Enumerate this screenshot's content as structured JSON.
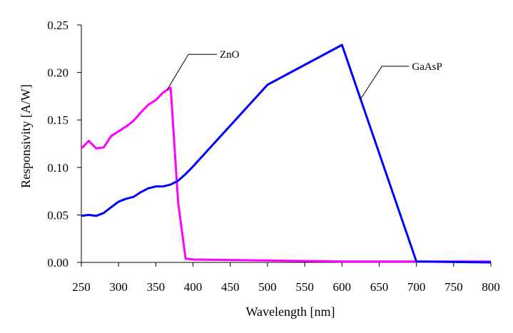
{
  "chart_data": {
    "type": "line",
    "title": "",
    "xlabel": "Wavelength  [nm]",
    "ylabel": "Responsivity [A/W]",
    "xlim": [
      250,
      800
    ],
    "ylim": [
      0,
      0.25
    ],
    "x_ticks": [
      250,
      300,
      350,
      400,
      450,
      500,
      550,
      600,
      650,
      700,
      750,
      800
    ],
    "y_ticks": [
      "0.00",
      "0.05",
      "0.10",
      "0.15",
      "0.20",
      "0.25"
    ],
    "grid": false,
    "legend": "none",
    "series": [
      {
        "name": "ZnO",
        "color": "#ff00ff",
        "points": [
          [
            250,
            0.12
          ],
          [
            260,
            0.128
          ],
          [
            270,
            0.12
          ],
          [
            280,
            0.121
          ],
          [
            290,
            0.133
          ],
          [
            300,
            0.138
          ],
          [
            310,
            0.143
          ],
          [
            320,
            0.149
          ],
          [
            330,
            0.158
          ],
          [
            340,
            0.166
          ],
          [
            350,
            0.171
          ],
          [
            360,
            0.179
          ],
          [
            370,
            0.184
          ],
          [
            380,
            0.063
          ],
          [
            390,
            0.004
          ],
          [
            400,
            0.003
          ],
          [
            500,
            0.002
          ],
          [
            600,
            0.001
          ],
          [
            700,
            0.001
          ],
          [
            800,
            0.001
          ]
        ]
      },
      {
        "name": "GaAsP",
        "color": "#0000ff",
        "points": [
          [
            250,
            0.049
          ],
          [
            260,
            0.05
          ],
          [
            270,
            0.049
          ],
          [
            280,
            0.052
          ],
          [
            290,
            0.058
          ],
          [
            300,
            0.064
          ],
          [
            310,
            0.067
          ],
          [
            320,
            0.069
          ],
          [
            330,
            0.074
          ],
          [
            340,
            0.078
          ],
          [
            350,
            0.08
          ],
          [
            360,
            0.08
          ],
          [
            370,
            0.082
          ],
          [
            380,
            0.086
          ],
          [
            390,
            0.093
          ],
          [
            400,
            0.101
          ],
          [
            500,
            0.187
          ],
          [
            600,
            0.229
          ],
          [
            700,
            0.001
          ],
          [
            800,
            0.0
          ]
        ]
      }
    ],
    "annotations": [
      {
        "text": "ZnO",
        "series": "ZnO",
        "at_x": 365
      },
      {
        "text": "GaAsP",
        "series": "GaAsP",
        "at_x": 625
      }
    ]
  }
}
